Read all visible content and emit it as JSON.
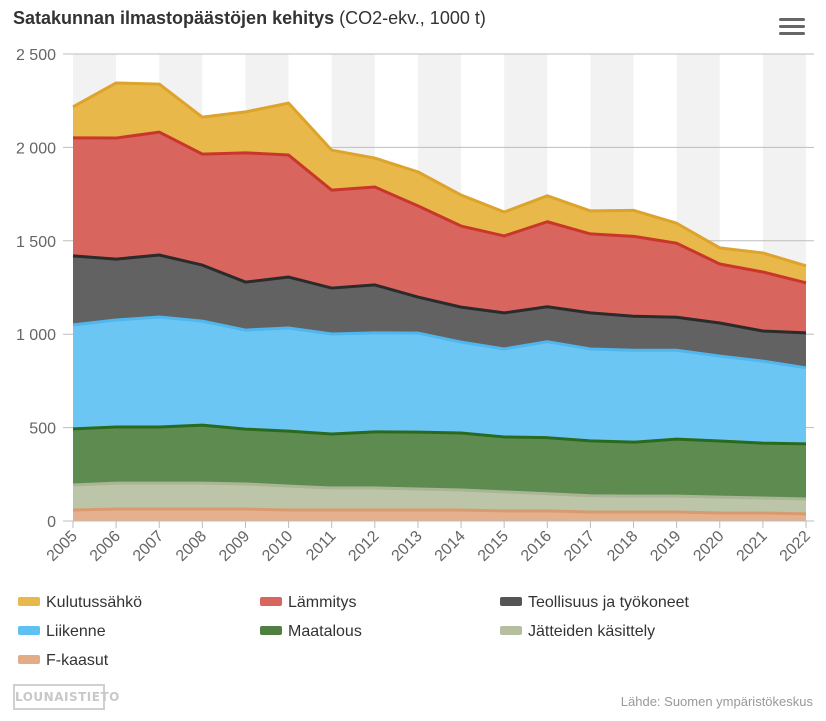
{
  "title": {
    "bold": "Satakunnan ilmastopäästöjen kehitys",
    "unit": "(CO2-ekv., 1000 t)"
  },
  "menu": {
    "icon": "hamburger-menu-icon"
  },
  "chart_data": {
    "type": "area",
    "stacked": true,
    "title": "Satakunnan ilmastopäästöjen kehitys (CO2-ekv., 1000 t)",
    "xlabel": "",
    "ylabel": "",
    "x": [
      "2005",
      "2006",
      "2007",
      "2008",
      "2009",
      "2010",
      "2011",
      "2012",
      "2013",
      "2014",
      "2015",
      "2016",
      "2017",
      "2018",
      "2019",
      "2020",
      "2021",
      "2022"
    ],
    "ylim": [
      0,
      2500
    ],
    "yticks": [
      0,
      500,
      1000,
      1500,
      2000,
      2500
    ],
    "ytick_labels": [
      "0",
      "500",
      "1 000",
      "1 500",
      "2 000",
      "2 500"
    ],
    "grid": true,
    "alternate_bands": true,
    "legend_position": "bottom",
    "series": [
      {
        "name": "Kulutussähkö",
        "color": "#e8b84a",
        "line": "#dea32a",
        "values": [
          166,
          295,
          257,
          198,
          219,
          278,
          214,
          155,
          182,
          166,
          128,
          139,
          123,
          139,
          107,
          86,
          102,
          91
        ]
      },
      {
        "name": "Lämmitys",
        "color": "#d9665e",
        "line": "#c9372c",
        "values": [
          632,
          648,
          658,
          594,
          692,
          653,
          524,
          524,
          488,
          434,
          412,
          455,
          423,
          428,
          396,
          316,
          316,
          268
        ]
      },
      {
        "name": "Teollisuus ja työkoneet",
        "color": "#626262",
        "line": "#2b2b2b",
        "values": [
          369,
          326,
          332,
          300,
          257,
          273,
          246,
          257,
          193,
          187,
          193,
          187,
          193,
          182,
          177,
          177,
          161,
          187
        ]
      },
      {
        "name": "Liikenne",
        "color": "#6cc6f3",
        "line": "#4fb6ee",
        "values": [
          557,
          573,
          589,
          557,
          530,
          552,
          535,
          530,
          530,
          487,
          471,
          514,
          492,
          492,
          476,
          455,
          439,
          407
        ]
      },
      {
        "name": "Maatalous",
        "color": "#5e8c50",
        "line": "#2a6a1f",
        "values": [
          300,
          300,
          300,
          310,
          294,
          294,
          289,
          300,
          305,
          305,
          294,
          300,
          294,
          289,
          305,
          300,
          294,
          295
        ]
      },
      {
        "name": "Jätteiden käsittely",
        "color": "#bcc5a8",
        "line": "#a9b595",
        "values": [
          134,
          139,
          139,
          139,
          134,
          128,
          118,
          118,
          112,
          107,
          102,
          92,
          87,
          85,
          85,
          85,
          80,
          80
        ]
      },
      {
        "name": "F-kaasut",
        "color": "#e4b08d",
        "line": "#d99b6e",
        "values": [
          59,
          64,
          64,
          64,
          64,
          59,
          59,
          59,
          59,
          59,
          54,
          54,
          48,
          48,
          48,
          43,
          43,
          38
        ]
      }
    ]
  },
  "legend": {
    "items": [
      {
        "label": "Kulutussähkö",
        "color": "#e8b84a"
      },
      {
        "label": "Lämmitys",
        "color": "#d9665e"
      },
      {
        "label": "Teollisuus ja työkoneet",
        "color": "#555555"
      },
      {
        "label": "Liikenne",
        "color": "#5fc0f2"
      },
      {
        "label": "Maatalous",
        "color": "#4f7f41"
      },
      {
        "label": "Jätteiden käsittely",
        "color": "#b5bf9f"
      },
      {
        "label": "F-kaasut",
        "color": "#e2ac86"
      }
    ]
  },
  "logo": {
    "text": "LOUNAISTIETO"
  },
  "credits": {
    "text": "Lähde: Suomen ympäristökeskus"
  }
}
